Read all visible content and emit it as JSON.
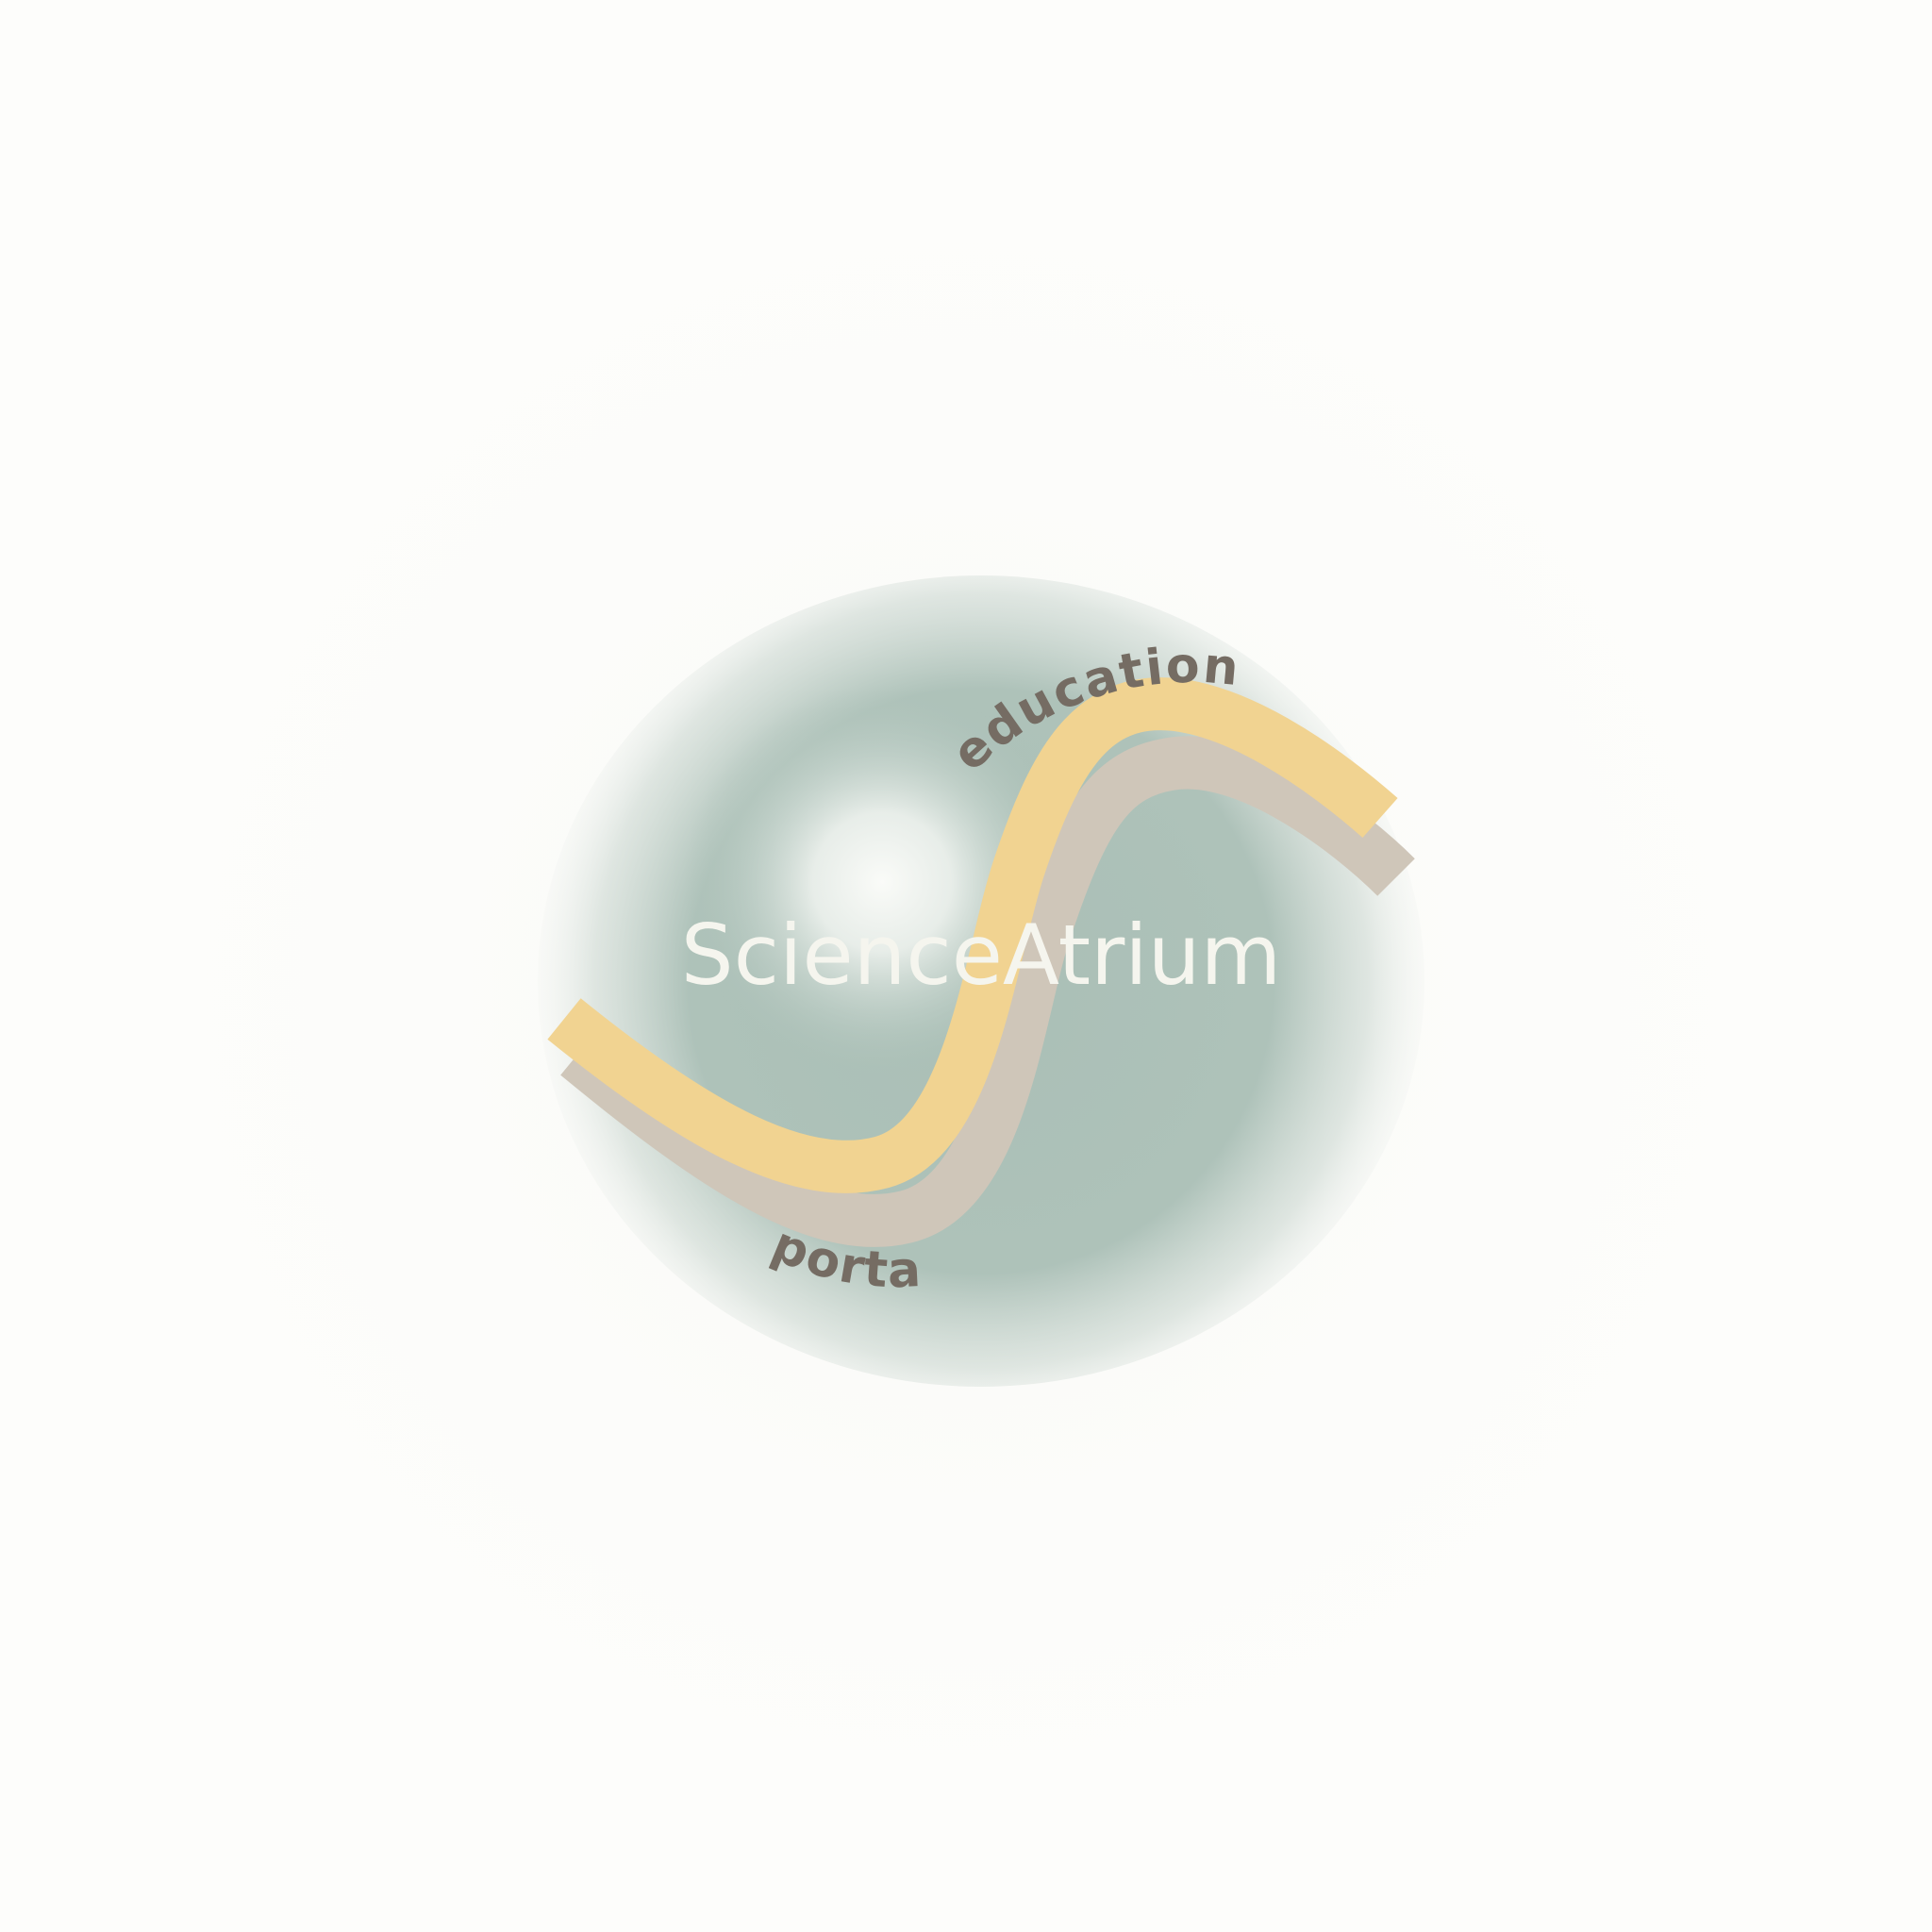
{
  "logo": {
    "brand_name": "ScienceAtrium",
    "tagline_top": "educational",
    "tagline_bottom": "portal"
  },
  "colors": {
    "background": "#fdfdfb",
    "orb": "#aabfb6",
    "orb_highlight": "#f7f8f4",
    "wave": "#f1d391",
    "wave_shadow": "#cfc6b9",
    "wordmark": "#f5f5ee",
    "tagline": "#756c63"
  }
}
